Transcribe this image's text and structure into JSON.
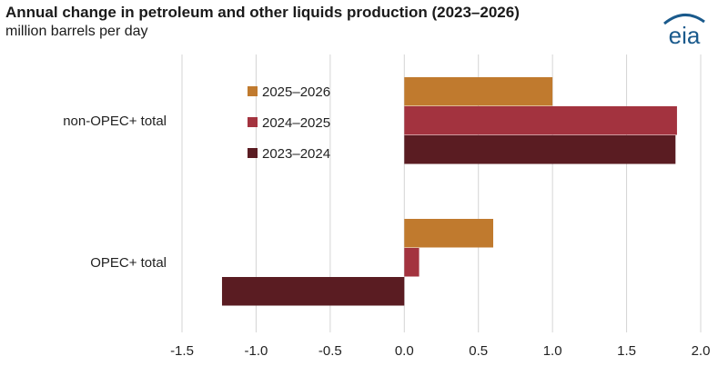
{
  "header": {
    "title": "Annual change in petroleum and other liquids production (2023–2026)",
    "subtitle": "million barrels per day",
    "logo_text": "eia"
  },
  "colors": {
    "s2025_2026": "#c07a2e",
    "s2024_2025": "#a3333f",
    "s2023_2024": "#5a1c22",
    "grid": "#d4d4d4",
    "logo": "#1a5a8c"
  },
  "chart_data": {
    "type": "bar",
    "orientation": "horizontal",
    "title": "Annual change in petroleum and other liquids production (2023–2026)",
    "subtitle": "million barrels per day",
    "categories": [
      "non-OPEC+ total",
      "OPEC+ total"
    ],
    "series": [
      {
        "name": "2025–2026",
        "values": [
          1.0,
          0.6
        ]
      },
      {
        "name": "2024–2025",
        "values": [
          1.84,
          0.1
        ]
      },
      {
        "name": "2023–2024",
        "values": [
          1.83,
          -1.23
        ]
      }
    ],
    "xlim": [
      -1.5,
      2.0
    ],
    "xticks": [
      "-1.5",
      "-1.0",
      "-0.5",
      "0.0",
      "0.5",
      "1.0",
      "1.5",
      "2.0"
    ],
    "grid": true,
    "legend_position": "top-center"
  }
}
